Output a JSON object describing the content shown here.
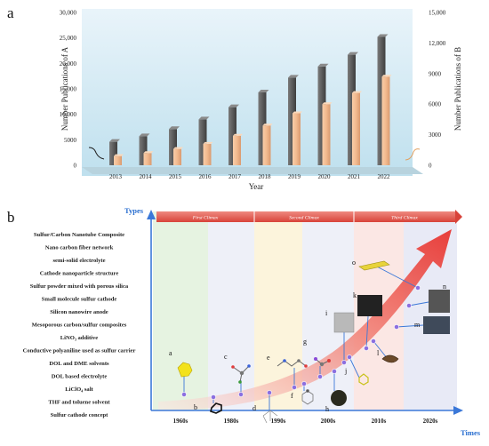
{
  "chart_data": [
    {
      "type": "bar",
      "panel_label": "a",
      "categories": [
        "2013",
        "2014",
        "2015",
        "2016",
        "2017",
        "2018",
        "2019",
        "2020",
        "2021",
        "2022"
      ],
      "series": [
        {
          "name": "A",
          "axis": "left",
          "values": [
            4600,
            5700,
            7100,
            9000,
            11400,
            14300,
            17200,
            19400,
            21700,
            25200
          ]
        },
        {
          "name": "B",
          "axis": "right",
          "values": [
            900,
            1200,
            1600,
            2100,
            2900,
            3900,
            5100,
            6000,
            7100,
            8700
          ]
        }
      ],
      "xlabel": "Year",
      "ylabel_left": "Number Publications of A",
      "ylabel_right": "Number Publications of B",
      "ylim_left": [
        0,
        30000
      ],
      "ylim_right": [
        0,
        15000
      ],
      "yticks_left": [
        "0",
        "5000",
        "10,000",
        "15,000",
        "20,000",
        "25,000",
        "30,000"
      ],
      "yticks_right": [
        "0",
        "3000",
        "6000",
        "9000",
        "12,000",
        "15,000"
      ],
      "colors": {
        "A": "#5a5a5a",
        "B": "#f2b98e"
      }
    },
    {
      "type": "timeline",
      "panel_label": "b",
      "y_title": "Types",
      "x_title": "Times",
      "decades": [
        "1960s",
        "1980s",
        "1990s",
        "2000s",
        "2010s",
        "2020s"
      ],
      "eras": [
        "First Climax",
        "Second Climax",
        "Third Climax"
      ],
      "types": [
        "Sulfur/Carbon Nanotube Composite",
        "Nano carbon fiber network",
        "semi-solid electrolyte",
        "Cathode nanoparticle structure",
        "Sulfur powder mixed with porous silica",
        "Small molecule sulfur cathode",
        "Silicon nanowire anode",
        "Mesoporous carbon/sulfur composites",
        "LiNO₃ additive",
        "Conductive polyaniline used as sulfur carrier",
        "DOL and DME solvents",
        "DOL based electrolyte",
        "LiClO₄ salt",
        "THF and toluene solvent",
        "Sulfur cathode concept"
      ],
      "markers": [
        "a",
        "b",
        "c",
        "d",
        "e",
        "f",
        "g",
        "h",
        "i",
        "j",
        "k",
        "l",
        "m",
        "n",
        "o"
      ]
    }
  ]
}
